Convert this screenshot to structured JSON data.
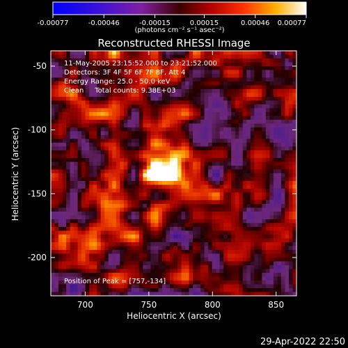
{
  "colorbar": {
    "tick_labels": [
      "-0.00077",
      "-0.00046",
      "-0.00015",
      "0.00015",
      "0.00046",
      "0.00077"
    ],
    "unit_label": "(photons cm⁻² s⁻¹ asec⁻²)"
  },
  "plot": {
    "title": "Reconstructed RHESSI Image",
    "xlabel": "Heliocentric X (arcsec)",
    "ylabel": "Heliocentric Y (arcsec)",
    "x_ticks": [
      "700",
      "750",
      "800",
      "850"
    ],
    "y_ticks": [
      "-50",
      "-100",
      "-150",
      "-200"
    ],
    "annotations": {
      "time_range": "11-May-2005 23:15:52.000 to 23:21:52.000",
      "detectors": "Detectors: 3F 4F 5F 6F 7F 8F, Att 4",
      "energy": "Energy Range: 25.0 - 50.0 keV",
      "method": "Clean     Total counts: 9.38E+03",
      "peak": "Position of Peak = [757,-134]"
    }
  },
  "footer": {
    "date": "29-Apr-2022 22:50"
  },
  "chart_data": {
    "type": "heatmap",
    "title": "Reconstructed RHESSI Image",
    "xlabel": "Heliocentric X (arcsec)",
    "ylabel": "Heliocentric Y (arcsec)",
    "xlim": [
      673,
      866
    ],
    "ylim": [
      -230,
      -38
    ],
    "x_ticks": [
      700,
      750,
      800,
      850
    ],
    "y_ticks": [
      -50,
      -100,
      -150,
      -200
    ],
    "colorbar_range": [
      -0.00077,
      0.00077
    ],
    "colorbar_ticks": [
      -0.00077,
      -0.00046,
      -0.00015,
      0.00015,
      0.00046,
      0.00077
    ],
    "peak_position": [
      757,
      -134
    ],
    "colormap": "blue-purple-red-yellow-white"
  }
}
